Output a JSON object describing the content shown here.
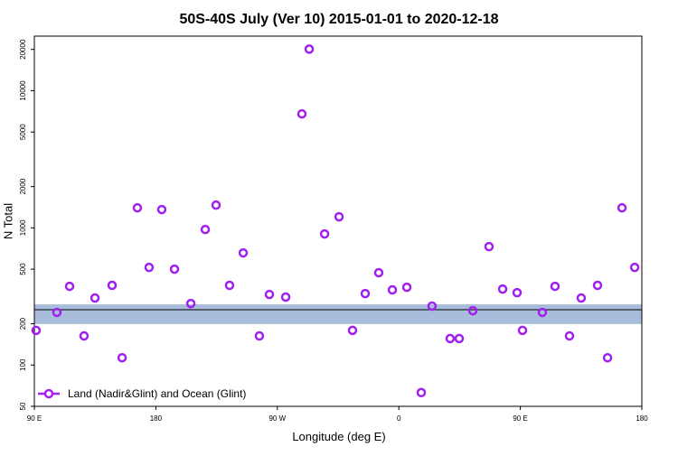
{
  "chart_data": {
    "type": "scatter",
    "title": "50S-40S July (Ver 10)   2015-01-01 to 2020-12-18",
    "xlabel": "Longitude (deg E)",
    "ylabel": "N Total",
    "log_y": true,
    "xlim": [
      90,
      540
    ],
    "xticks": [
      {
        "value": 90,
        "label": "90 E"
      },
      180,
      {
        "value": 270,
        "label": "90 W"
      },
      {
        "value": 360,
        "label": "0"
      },
      {
        "value": 450,
        "label": "90 E"
      },
      {
        "value": 540,
        "label": "180"
      }
    ],
    "ylim": [
      50,
      25000
    ],
    "yticks": [
      50,
      100,
      200,
      500,
      1000,
      2000,
      5000,
      10000,
      20000
    ],
    "band": {
      "range": [
        199,
        277
      ],
      "color": "#a8bddb"
    },
    "reference_line": 253,
    "legend_position": "bottom-left",
    "series": [
      {
        "name": "Land (Nadir&Glint) and Ocean (Glint)",
        "color": "#a020f0",
        "x": [
          91.3,
          106.7,
          116.1,
          126.8,
          134.9,
          147.6,
          155.0,
          166.3,
          175.0,
          184.4,
          193.8,
          205.9,
          216.6,
          224.6,
          234.6,
          244.7,
          256.7,
          264.1,
          276.2,
          288.2,
          293.6,
          305.0,
          315.7,
          325.7,
          335.1,
          345.1,
          355.2,
          365.9,
          376.6,
          384.6,
          398.0,
          404.7,
          414.8,
          426.8,
          436.9,
          447.6,
          451.6,
          466.3,
          475.7,
          486.4,
          495.1,
          507.2,
          514.6,
          525.3,
          534.7
        ],
        "values": [
          179,
          242,
          375,
          163,
          308,
          381,
          113,
          1400,
          515,
          1360,
          500,
          281,
          973,
          1465,
          381,
          657,
          163,
          327,
          313,
          6770,
          20100,
          903,
          1204,
          179,
          332,
          471,
          353,
          369,
          63,
          269,
          156,
          156,
          249,
          730,
          358,
          337,
          179,
          242,
          375,
          163,
          308,
          381,
          113,
          1400,
          515
        ]
      }
    ]
  }
}
